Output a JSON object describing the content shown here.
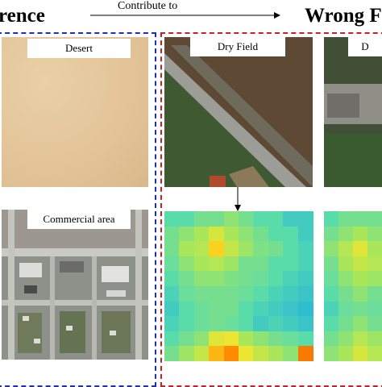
{
  "headings": {
    "left": "rence",
    "right": "Wrong F",
    "arrow_label": "Contribute to"
  },
  "tiles": {
    "desert": {
      "label": "Desert"
    },
    "commercial": {
      "label": "Commercial area"
    },
    "dry_field": {
      "label": "Dry Field"
    },
    "partial_label": "D"
  },
  "colors": {
    "reference_box": "#1f2fb0",
    "wrong_box": "#c8202a",
    "desert": "#e4c699",
    "heatmap_base": "#6edc9a"
  },
  "heatmap": {
    "left": [
      [
        0.45,
        0.45,
        0.5,
        0.5,
        0.55,
        0.5,
        0.45,
        0.45,
        0.4,
        0.4
      ],
      [
        0.5,
        0.55,
        0.6,
        0.68,
        0.6,
        0.55,
        0.5,
        0.45,
        0.45,
        0.4
      ],
      [
        0.5,
        0.6,
        0.62,
        0.78,
        0.65,
        0.58,
        0.52,
        0.5,
        0.45,
        0.42
      ],
      [
        0.48,
        0.55,
        0.6,
        0.62,
        0.58,
        0.5,
        0.5,
        0.45,
        0.45,
        0.42
      ],
      [
        0.45,
        0.5,
        0.55,
        0.55,
        0.52,
        0.5,
        0.48,
        0.45,
        0.42,
        0.4
      ],
      [
        0.42,
        0.48,
        0.5,
        0.5,
        0.5,
        0.48,
        0.45,
        0.42,
        0.4,
        0.38
      ],
      [
        0.4,
        0.45,
        0.48,
        0.5,
        0.5,
        0.45,
        0.42,
        0.4,
        0.38,
        0.36
      ],
      [
        0.42,
        0.45,
        0.48,
        0.5,
        0.48,
        0.45,
        0.4,
        0.42,
        0.4,
        0.38
      ],
      [
        0.45,
        0.5,
        0.55,
        0.7,
        0.72,
        0.6,
        0.55,
        0.5,
        0.48,
        0.45
      ],
      [
        0.5,
        0.58,
        0.65,
        0.82,
        0.88,
        0.72,
        0.65,
        0.6,
        0.55,
        0.9
      ]
    ],
    "right": [
      [
        0.45,
        0.5,
        0.5,
        0.5
      ],
      [
        0.5,
        0.55,
        0.6,
        0.55
      ],
      [
        0.55,
        0.62,
        0.7,
        0.6
      ],
      [
        0.5,
        0.6,
        0.65,
        0.62
      ],
      [
        0.48,
        0.55,
        0.6,
        0.58
      ],
      [
        0.45,
        0.5,
        0.55,
        0.5
      ],
      [
        0.42,
        0.48,
        0.5,
        0.48
      ],
      [
        0.45,
        0.5,
        0.55,
        0.5
      ],
      [
        0.5,
        0.55,
        0.62,
        0.58
      ],
      [
        0.55,
        0.6,
        0.68,
        0.62
      ]
    ]
  }
}
